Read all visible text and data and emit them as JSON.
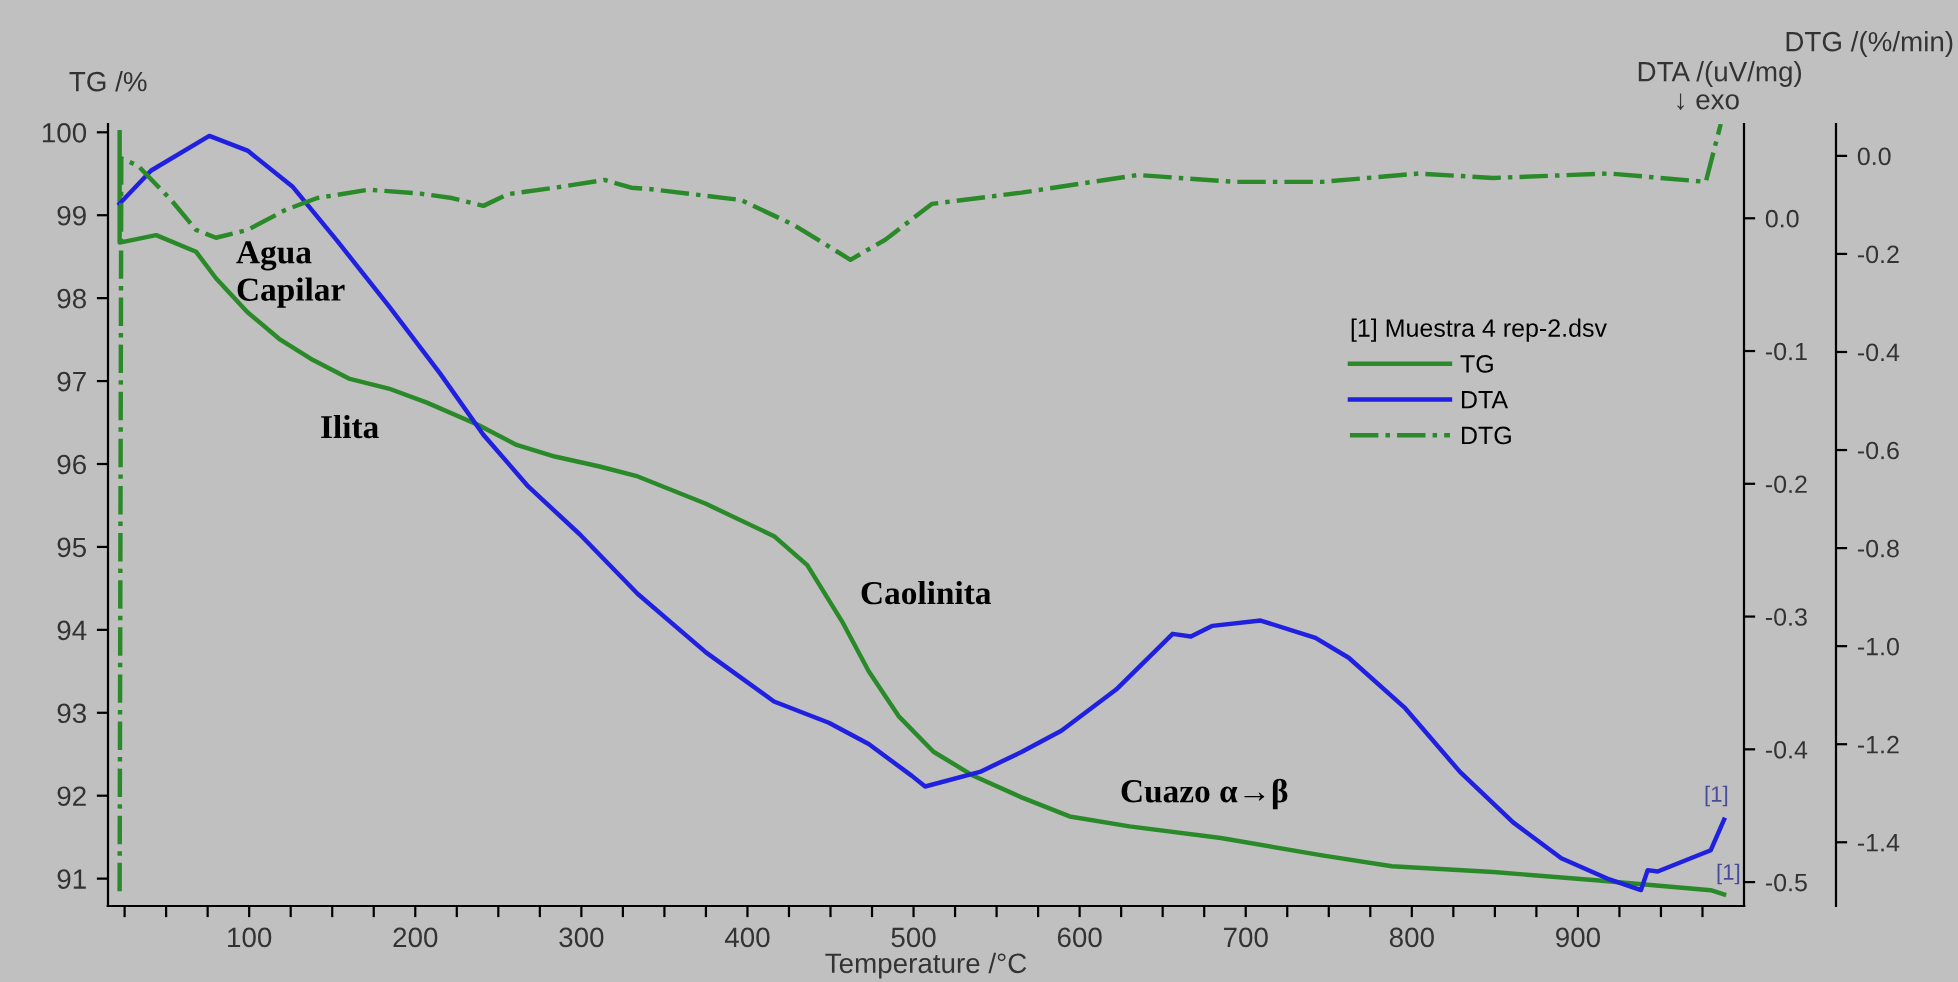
{
  "chart_data": {
    "type": "line",
    "xlabel": "Temperature /°C",
    "ylabel": "TG /%",
    "y2label": "DTA /(uV/mg)",
    "y3label": "DTG /(%/min)",
    "legend_title": "[1] Muestra 4 rep-2.dsv",
    "legend": "upper right",
    "grid": false,
    "xlim": [
      15,
      1000
    ],
    "xticks": [
      {
        "value": 25,
        "label": null
      },
      {
        "value": 50,
        "label": null
      },
      {
        "value": 75,
        "label": null
      },
      100,
      {
        "value": 125,
        "label": null
      },
      {
        "value": 150,
        "label": null
      },
      {
        "value": 175,
        "label": null
      },
      200,
      {
        "value": 225,
        "label": null
      },
      {
        "value": 250,
        "label": null
      },
      {
        "value": 275,
        "label": null
      },
      300,
      {
        "value": 325,
        "label": null
      },
      {
        "value": 350,
        "label": null
      },
      {
        "value": 375,
        "label": null
      },
      400,
      {
        "value": 425,
        "label": null
      },
      {
        "value": 450,
        "label": null
      },
      {
        "value": 475,
        "label": null
      },
      500,
      {
        "value": 525,
        "label": null
      },
      {
        "value": 550,
        "label": null
      },
      {
        "value": 575,
        "label": null
      },
      600,
      {
        "value": 625,
        "label": null
      },
      {
        "value": 650,
        "label": null
      },
      {
        "value": 675,
        "label": null
      },
      700,
      {
        "value": 725,
        "label": null
      },
      {
        "value": 750,
        "label": null
      },
      {
        "value": 775,
        "label": null
      },
      800,
      {
        "value": 825,
        "label": null
      },
      {
        "value": 850,
        "label": null
      },
      {
        "value": 875,
        "label": null
      },
      900,
      {
        "value": 925,
        "label": null
      },
      {
        "value": 950,
        "label": null
      },
      {
        "value": 975,
        "label": null
      }
    ],
    "ylim": [
      90.67,
      100.1
    ],
    "yticks": [
      91,
      92,
      93,
      94,
      95,
      96,
      97,
      98,
      99,
      100
    ],
    "y2lim": [
      -0.518,
      0.071
    ],
    "y2ticks": [
      {
        "value": 0,
        "label": "0.0"
      },
      {
        "value": -0.1,
        "label": "-0.1"
      },
      {
        "value": -0.2,
        "label": "-0.2"
      },
      {
        "value": -0.3,
        "label": "-0.3"
      },
      {
        "value": -0.4,
        "label": "-0.4"
      },
      {
        "value": -0.5,
        "label": "-0.5"
      }
    ],
    "y3lim": [
      -1.53,
      0.065
    ],
    "y3ticks": [
      {
        "value": 0,
        "label": "0.0"
      },
      {
        "value": -0.2,
        "label": "-0.2"
      },
      {
        "value": -0.4,
        "label": "-0.4"
      },
      {
        "value": -0.6,
        "label": "-0.6"
      },
      {
        "value": -0.8,
        "label": "-0.8"
      },
      {
        "value": -1.0,
        "label": "-1.0"
      },
      {
        "value": -1.2,
        "label": "-1.2"
      },
      {
        "value": -1.4,
        "label": "-1.4"
      }
    ],
    "series": [
      {
        "name": "TG",
        "color": "#2a8a2a",
        "line_style": "solid",
        "x": [
          22,
          22,
          44,
          68,
          80,
          99,
          118,
          137,
          160,
          184,
          207,
          238,
          261,
          284,
          311,
          334,
          375,
          416,
          436,
          457,
          473,
          491,
          512,
          536,
          565,
          594,
          630,
          685,
          746,
          788,
          849,
          911,
          980,
          988
        ],
        "values": [
          100.0,
          98.67,
          98.76,
          98.56,
          98.24,
          97.83,
          97.51,
          97.27,
          97.03,
          96.91,
          96.74,
          96.47,
          96.23,
          96.09,
          95.97,
          95.85,
          95.52,
          95.13,
          94.78,
          94.1,
          93.5,
          92.96,
          92.53,
          92.24,
          91.98,
          91.75,
          91.63,
          91.49,
          91.28,
          91.15,
          91.08,
          90.98,
          90.86,
          90.81
        ]
      },
      {
        "name": "DTA",
        "color": "#2020e0",
        "line_style": "solid",
        "axis": "y2",
        "x": [
          22,
          41,
          76,
          99,
          126,
          153,
          184,
          215,
          241,
          268,
          299,
          334,
          375,
          416,
          449,
          473,
          499,
          507,
          540,
          565,
          589,
          622,
          656,
          667,
          680,
          709,
          742,
          762,
          796,
          829,
          861,
          890,
          919,
          938,
          942,
          948,
          980,
          988
        ],
        "values": [
          0.011,
          0.036,
          0.062,
          0.051,
          0.024,
          -0.017,
          -0.066,
          -0.117,
          -0.163,
          -0.202,
          -0.238,
          -0.283,
          -0.327,
          -0.364,
          -0.38,
          -0.396,
          -0.42,
          -0.428,
          -0.417,
          -0.402,
          -0.386,
          -0.355,
          -0.313,
          -0.315,
          -0.307,
          -0.303,
          -0.316,
          -0.331,
          -0.369,
          -0.417,
          -0.455,
          -0.482,
          -0.498,
          -0.506,
          -0.491,
          -0.492,
          -0.476,
          -0.453
        ]
      },
      {
        "name": "DTG",
        "color": "#2a8a2a",
        "line_style": "dashdot",
        "axis": "y3",
        "x": [
          22,
          23,
          33,
          53,
          68,
          80,
          99,
          122,
          141,
          172,
          203,
          222,
          241,
          256,
          288,
          314,
          330,
          342,
          396,
          428,
          462,
          483,
          511,
          565,
          635,
          693,
          746,
          804,
          849,
          919,
          977,
          986
        ],
        "values": [
          -1.5,
          -0.005,
          -0.02,
          -0.09,
          -0.151,
          -0.167,
          -0.151,
          -0.11,
          -0.086,
          -0.069,
          -0.077,
          -0.086,
          -0.102,
          -0.078,
          -0.063,
          -0.049,
          -0.065,
          -0.068,
          -0.09,
          -0.141,
          -0.212,
          -0.171,
          -0.098,
          -0.075,
          -0.039,
          -0.053,
          -0.053,
          -0.036,
          -0.045,
          -0.036,
          -0.053,
          0.065
        ]
      }
    ],
    "annotations": [
      "Agua\nCapilar",
      "Ilita",
      "Caolinita",
      "Cuazo α→β",
      "[1]",
      "[1]",
      "↓ exo"
    ]
  }
}
